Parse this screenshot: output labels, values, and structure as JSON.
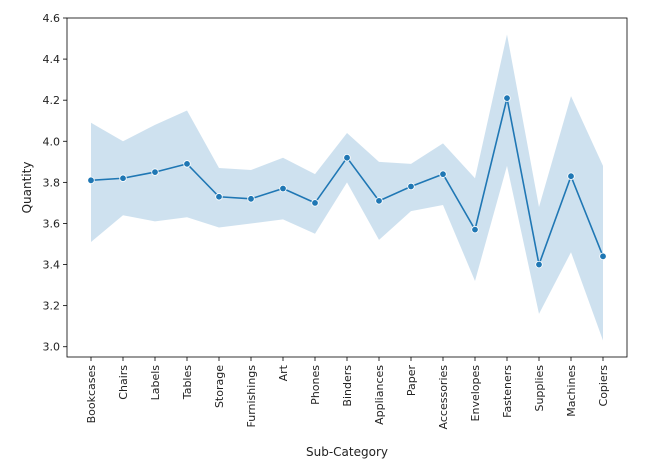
{
  "chart_data": {
    "type": "line",
    "xlabel": "Sub-Category",
    "ylabel": "Quantity",
    "ylim": [
      2.95,
      4.6
    ],
    "yticks": [
      3.0,
      3.2,
      3.4,
      3.6,
      3.8,
      4.0,
      4.2,
      4.4,
      4.6
    ],
    "ytick_labels": [
      "3.0",
      "3.2",
      "3.4",
      "3.6",
      "3.8",
      "4.0",
      "4.2",
      "4.4",
      "4.6"
    ],
    "grid": false,
    "categories": [
      "Bookcases",
      "Chairs",
      "Labels",
      "Tables",
      "Storage",
      "Furnishings",
      "Art",
      "Phones",
      "Binders",
      "Appliances",
      "Paper",
      "Accessories",
      "Envelopes",
      "Fasteners",
      "Supplies",
      "Machines",
      "Copiers"
    ],
    "series": [
      {
        "values": [
          3.81,
          3.82,
          3.85,
          3.89,
          3.73,
          3.72,
          3.77,
          3.7,
          3.92,
          3.71,
          3.78,
          3.84,
          3.57,
          4.21,
          3.4,
          3.83,
          3.44
        ],
        "ci_lower": [
          3.51,
          3.64,
          3.61,
          3.63,
          3.58,
          3.6,
          3.62,
          3.55,
          3.8,
          3.52,
          3.66,
          3.69,
          3.32,
          3.88,
          3.16,
          3.46,
          3.03
        ],
        "ci_upper": [
          4.09,
          4.0,
          4.08,
          4.15,
          3.87,
          3.86,
          3.92,
          3.84,
          4.04,
          3.9,
          3.89,
          3.99,
          3.82,
          4.52,
          3.68,
          4.22,
          3.88
        ],
        "color": "#1f77b4",
        "band_color": "#1f77b4"
      }
    ]
  }
}
